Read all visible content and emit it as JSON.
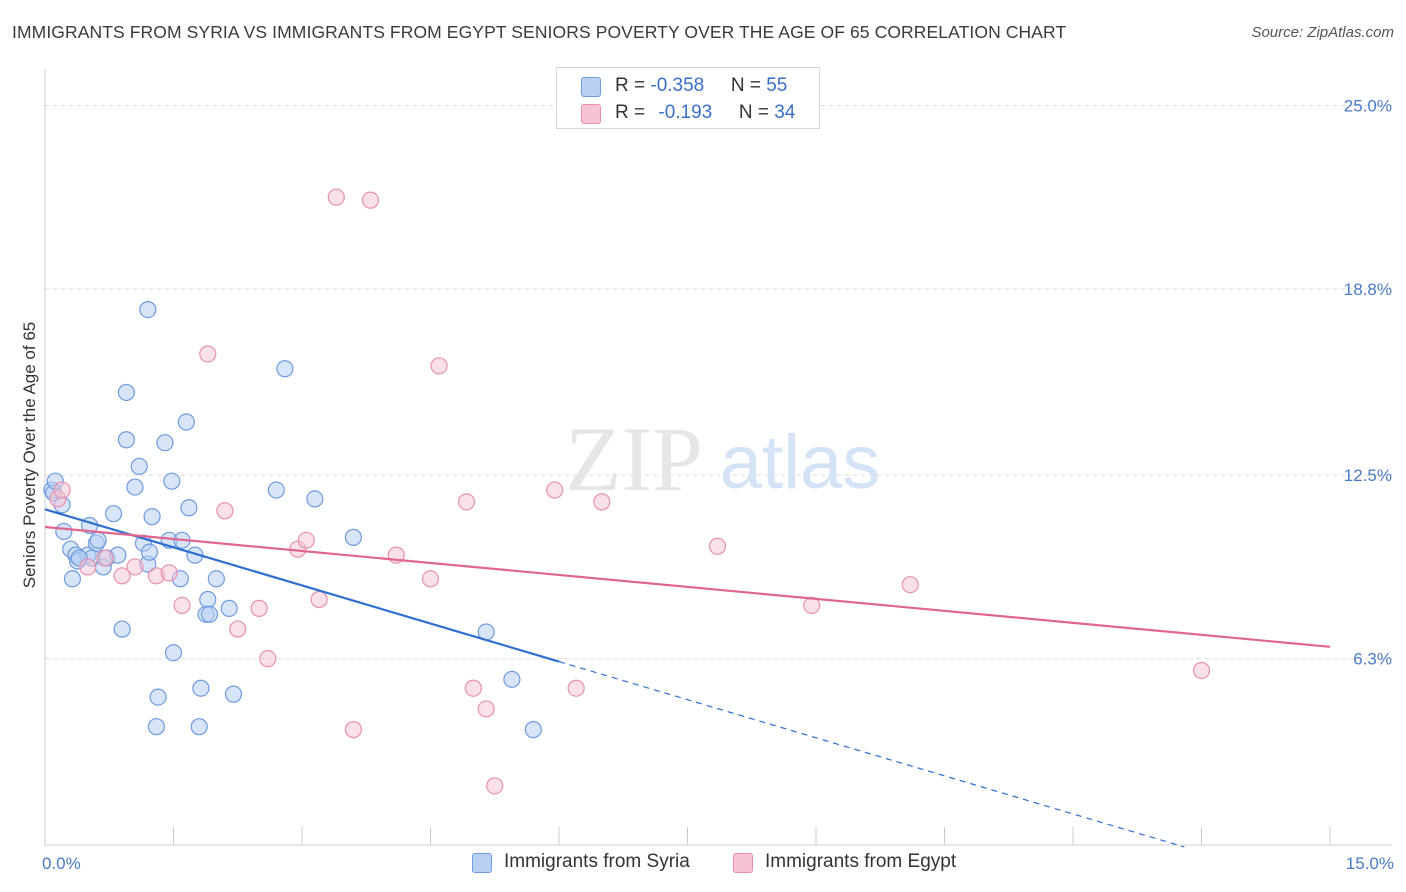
{
  "title": "IMMIGRANTS FROM SYRIA VS IMMIGRANTS FROM EGYPT SENIORS POVERTY OVER THE AGE OF 65 CORRELATION CHART",
  "source": "Source: ZipAtlas.com",
  "watermark": {
    "zip": "ZIP",
    "atlas": "atlas"
  },
  "colors": {
    "syria_fill": "#b8d0f2",
    "syria_stroke": "#6f9be0",
    "syria_line": "#2f6fd0",
    "egypt_fill": "#f6c3d3",
    "egypt_stroke": "#e890ad",
    "egypt_line": "#e0668f",
    "axis_text": "#4a7bc4",
    "grid": "#dcdcdc"
  },
  "legend_top": [
    {
      "r_label": "R = ",
      "r_value": "-0.358",
      "n_label": "N = ",
      "n_value": "55"
    },
    {
      "r_label": "R = ",
      "r_value": "-0.193",
      "n_label": "N = ",
      "n_value": "34"
    }
  ],
  "legend_bottom": [
    "Immigrants from Syria",
    "Immigrants from Egypt"
  ],
  "chart_data": {
    "type": "scatter",
    "title": "IMMIGRANTS FROM SYRIA VS IMMIGRANTS FROM EGYPT SENIORS POVERTY OVER THE AGE OF 65 CORRELATION CHART",
    "xlabel": "",
    "ylabel": "Seniors Poverty Over the Age of 65",
    "xlim": [
      0,
      15
    ],
    "ylim": [
      0,
      26.2
    ],
    "x_tick_labels": [
      "0.0%",
      "15.0%"
    ],
    "y_ticks": [
      {
        "value": 25.0,
        "label": "25.0%"
      },
      {
        "value": 18.8,
        "label": "18.8%"
      },
      {
        "value": 12.5,
        "label": "12.5%"
      },
      {
        "value": 6.3,
        "label": "6.3%"
      }
    ],
    "grid": true,
    "legend_position": "bottom",
    "series": [
      {
        "name": "Immigrants from Syria",
        "r": -0.358,
        "n": 55,
        "trend": {
          "x0": 0.0,
          "y0": 11.35,
          "x1": 6.0,
          "y1": 6.2,
          "dashed_to_x": 13.3
        },
        "points": [
          [
            0.08,
            12.0
          ],
          [
            0.1,
            11.9
          ],
          [
            0.12,
            12.3
          ],
          [
            0.2,
            11.5
          ],
          [
            0.22,
            10.6
          ],
          [
            0.3,
            10.0
          ],
          [
            0.32,
            9.0
          ],
          [
            0.36,
            9.8
          ],
          [
            0.38,
            9.6
          ],
          [
            0.5,
            9.8
          ],
          [
            0.52,
            10.8
          ],
          [
            0.55,
            9.7
          ],
          [
            0.6,
            10.2
          ],
          [
            0.68,
            9.4
          ],
          [
            0.72,
            9.7
          ],
          [
            0.8,
            11.2
          ],
          [
            0.85,
            9.8
          ],
          [
            0.9,
            7.3
          ],
          [
            0.95,
            13.7
          ],
          [
            0.95,
            15.3
          ],
          [
            1.05,
            12.1
          ],
          [
            1.1,
            12.8
          ],
          [
            1.15,
            10.2
          ],
          [
            1.2,
            9.5
          ],
          [
            1.25,
            11.1
          ],
          [
            1.2,
            18.1
          ],
          [
            1.3,
            4.0
          ],
          [
            1.32,
            5.0
          ],
          [
            1.4,
            13.6
          ],
          [
            1.45,
            10.3
          ],
          [
            1.48,
            12.3
          ],
          [
            1.5,
            6.5
          ],
          [
            1.58,
            9.0
          ],
          [
            1.6,
            10.3
          ],
          [
            1.65,
            14.3
          ],
          [
            1.68,
            11.4
          ],
          [
            1.75,
            9.8
          ],
          [
            1.8,
            4.0
          ],
          [
            1.82,
            5.3
          ],
          [
            1.88,
            7.8
          ],
          [
            1.9,
            8.3
          ],
          [
            1.92,
            7.8
          ],
          [
            2.0,
            9.0
          ],
          [
            2.15,
            8.0
          ],
          [
            2.2,
            5.1
          ],
          [
            2.7,
            12.0
          ],
          [
            2.8,
            16.1
          ],
          [
            3.15,
            11.7
          ],
          [
            3.6,
            10.4
          ],
          [
            5.15,
            7.2
          ],
          [
            5.45,
            5.6
          ],
          [
            5.7,
            3.9
          ],
          [
            0.4,
            9.7
          ],
          [
            0.62,
            10.3
          ],
          [
            1.22,
            9.9
          ]
        ]
      },
      {
        "name": "Immigrants from Egypt",
        "r": -0.193,
        "n": 34,
        "trend": {
          "x0": 0.0,
          "y0": 10.75,
          "x1": 15.0,
          "y1": 6.7
        },
        "points": [
          [
            0.15,
            11.7
          ],
          [
            0.2,
            12.0
          ],
          [
            0.5,
            9.4
          ],
          [
            0.7,
            9.7
          ],
          [
            0.9,
            9.1
          ],
          [
            1.05,
            9.4
          ],
          [
            1.3,
            9.1
          ],
          [
            1.45,
            9.2
          ],
          [
            1.6,
            8.1
          ],
          [
            1.9,
            16.6
          ],
          [
            2.1,
            11.3
          ],
          [
            2.25,
            7.3
          ],
          [
            2.5,
            8.0
          ],
          [
            2.6,
            6.3
          ],
          [
            2.95,
            10.0
          ],
          [
            3.05,
            10.3
          ],
          [
            3.2,
            8.3
          ],
          [
            3.4,
            21.9
          ],
          [
            3.6,
            3.9
          ],
          [
            3.8,
            21.8
          ],
          [
            4.1,
            9.8
          ],
          [
            4.5,
            9.0
          ],
          [
            4.6,
            16.2
          ],
          [
            4.92,
            11.6
          ],
          [
            5.0,
            5.3
          ],
          [
            5.15,
            4.6
          ],
          [
            5.25,
            2.0
          ],
          [
            5.95,
            12.0
          ],
          [
            6.2,
            5.3
          ],
          [
            6.5,
            11.6
          ],
          [
            7.85,
            10.1
          ],
          [
            8.95,
            8.1
          ],
          [
            10.1,
            8.8
          ],
          [
            13.5,
            5.9
          ]
        ]
      }
    ]
  }
}
